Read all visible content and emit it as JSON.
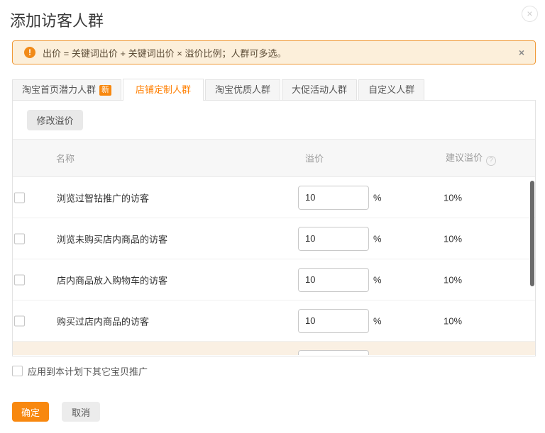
{
  "modal": {
    "title": "添加访客人群",
    "close_glyph": "×"
  },
  "alert": {
    "icon_glyph": "!",
    "text": "出价 = 关键词出价 + 关键词出价 × 溢价比例；人群可多选。",
    "close_glyph": "×"
  },
  "tabs": [
    {
      "label": "淘宝首页潜力人群",
      "badge": "新"
    },
    {
      "label": "店铺定制人群",
      "badge": ""
    },
    {
      "label": "淘宝优质人群",
      "badge": ""
    },
    {
      "label": "大促活动人群",
      "badge": ""
    },
    {
      "label": "自定义人群",
      "badge": ""
    }
  ],
  "toolbar": {
    "modify_premium": "修改溢价"
  },
  "table": {
    "header": {
      "name": "名称",
      "premium": "溢价",
      "suggested": "建议溢价",
      "help_glyph": "?"
    },
    "percent": "%",
    "rows": [
      {
        "name": "浏览过智钻推广的访客",
        "premium": "10",
        "suggested": "10%"
      },
      {
        "name": "浏览未购买店内商品的访客",
        "premium": "10",
        "suggested": "10%"
      },
      {
        "name": "店内商品放入购物车的访客",
        "premium": "10",
        "suggested": "10%"
      },
      {
        "name": "购买过店内商品的访客",
        "premium": "10",
        "suggested": "10%"
      },
      {
        "name": "",
        "premium": "",
        "suggested": ""
      }
    ]
  },
  "apply": {
    "label": "应用到本计划下其它宝贝推广"
  },
  "footer": {
    "confirm": "确定",
    "cancel": "取消"
  },
  "colors": {
    "accent": "#f8880f",
    "active_tab_text": "#ff7f02",
    "alert_bg": "#fcefda",
    "alert_border": "#f09a38",
    "scrollbar": "#6b6b6b",
    "highlight_row_bg": "#faf0e3"
  }
}
